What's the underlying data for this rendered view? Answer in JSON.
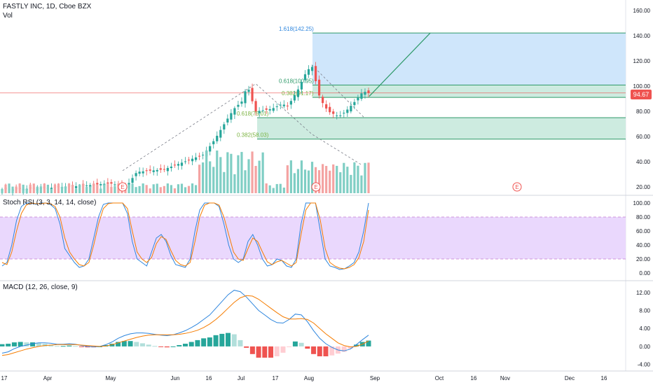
{
  "header": {
    "symbol_line": "FASTLY INC, 1D, Cboe BZX",
    "vol_label": "Vol"
  },
  "last_price_badge": "94.67",
  "colors": {
    "up": "#26a69a",
    "down": "#ef5350",
    "up_vol": "#7fcec4",
    "down_vol": "#f4a3a2",
    "fib_blue_zone": "#cfe6fb",
    "fib_green_zone": "#cdebe0",
    "stoch_band": "#ead8fd",
    "k_line": "#2e86de",
    "d_line": "#f57c00",
    "hline_green": "#2e9a69",
    "price_line": "#ef5350"
  },
  "chart_data": [
    {
      "type": "candlestick",
      "title": "FASTLY INC, 1D, Cboe BZX",
      "x_ticks": [
        "17",
        "Apr",
        "May",
        "Jun",
        "16",
        "Jul",
        "17",
        "Aug",
        "Sep",
        "Oct",
        "16",
        "Nov",
        "Dec",
        "16"
      ],
      "y_ticks": [
        "160.00",
        "140.00",
        "120.00",
        "100.00",
        "80.00",
        "60.00",
        "40.00",
        "20.00"
      ],
      "ylim": [
        14,
        164
      ],
      "last_price": 94.67,
      "earnings_markers": [
        "E",
        "E",
        "E"
      ],
      "fib_labels": [
        "1.618(142.25)",
        "0.618(100.95)",
        "0.382(91.17)",
        "0.618(75.01)",
        "0.382(58.03)"
      ],
      "fib_levels": [
        142.25,
        100.95,
        91.17,
        75.01,
        58.03
      ],
      "candles_approx": "daily OHLC from ~15 to ~118, peak early Aug, last close 94.67"
    },
    {
      "type": "line",
      "title": "Stoch RSI (3, 3, 14, 14, close)",
      "y_ticks": [
        "100.00",
        "80.00",
        "60.00",
        "40.00",
        "20.00",
        "0.00"
      ],
      "ylim": [
        -5,
        105
      ],
      "bands": [
        20,
        80
      ],
      "series": [
        {
          "name": "",
          "values": [
            10,
            15,
            40,
            75,
            95,
            100,
            100,
            98,
            100,
            100,
            98,
            92,
            70,
            35,
            25,
            15,
            8,
            10,
            20,
            50,
            80,
            98,
            100,
            100,
            100,
            100,
            85,
            45,
            20,
            15,
            10,
            30,
            50,
            55,
            45,
            25,
            12,
            10,
            8,
            20,
            60,
            90,
            100,
            100,
            100,
            95,
            70,
            40,
            20,
            15,
            20,
            45,
            55,
            40,
            20,
            10,
            12,
            20,
            18,
            10,
            8,
            20,
            70,
            100,
            100,
            100,
            60,
            20,
            10,
            8,
            5,
            6,
            10,
            15,
            30,
            60,
            100
          ]
        },
        {
          "name": "",
          "values": [
            15,
            12,
            30,
            60,
            85,
            97,
            100,
            99,
            99,
            100,
            99,
            95,
            80,
            50,
            30,
            20,
            12,
            10,
            15,
            40,
            70,
            92,
            99,
            100,
            100,
            100,
            92,
            60,
            30,
            20,
            15,
            22,
            42,
            52,
            48,
            32,
            18,
            12,
            10,
            15,
            45,
            80,
            97,
            100,
            100,
            97,
            80,
            55,
            30,
            20,
            18,
            35,
            50,
            45,
            30,
            16,
            12,
            16,
            18,
            14,
            10,
            15,
            55,
            90,
            100,
            100,
            75,
            35,
            15,
            10,
            7,
            6,
            8,
            12,
            22,
            45,
            90
          ]
        }
      ]
    },
    {
      "type": "line",
      "title": "MACD (12, 26, close, 9)",
      "y_ticks": [
        "12.00",
        "8.00",
        "4.00",
        "0.00",
        "-4.00"
      ],
      "ylim": [
        -5,
        14
      ],
      "series": [
        {
          "name": "",
          "values": [
            -1.5,
            -1.2,
            -0.5,
            0,
            0.3,
            0.6,
            0.8,
            0.8,
            0.7,
            0.5,
            0.5,
            0.6,
            0.5,
            0.2,
            0,
            -0.1,
            0,
            0.4,
            1,
            1.8,
            2.4,
            2.8,
            3.0,
            3.0,
            2.9,
            2.7,
            2.5,
            2.4,
            2.6,
            3.0,
            3.5,
            4.2,
            5.0,
            6.0,
            7.0,
            8.5,
            10.0,
            11.5,
            12.5,
            12.2,
            11.0,
            9.5,
            8.0,
            7.0,
            6.0,
            5.3,
            5.2,
            6.0,
            7.2,
            7.0,
            5.5,
            3.5,
            1.8,
            0.6,
            -0.2,
            -0.8,
            -1.0,
            -0.6,
            0.4,
            1.5,
            2.5
          ]
        },
        {
          "name": "",
          "values": [
            -2.0,
            -1.8,
            -1.4,
            -1.0,
            -0.6,
            -0.3,
            0,
            0.2,
            0.3,
            0.4,
            0.4,
            0.4,
            0.4,
            0.3,
            0.2,
            0.1,
            0,
            0.1,
            0.4,
            0.8,
            1.2,
            1.6,
            2.0,
            2.3,
            2.5,
            2.6,
            2.6,
            2.6,
            2.6,
            2.7,
            2.9,
            3.2,
            3.6,
            4.2,
            5.0,
            6.0,
            7.2,
            8.5,
            9.8,
            10.8,
            11.3,
            11.2,
            10.5,
            9.5,
            8.5,
            7.5,
            6.6,
            6.1,
            6.1,
            6.2,
            6.0,
            5.2,
            4.0,
            2.8,
            1.8,
            0.8,
            0.2,
            -0.1,
            0,
            0.5,
            1.2
          ]
        },
        {
          "name": "",
          "values": [
            0.5,
            0.6,
            0.9,
            1.0,
            0.9,
            0.9,
            0.8,
            0.6,
            0.4,
            0.1,
            0.1,
            0.2,
            0.1,
            -0.1,
            -0.2,
            -0.2,
            0,
            0.3,
            0.6,
            1.0,
            1.2,
            1.2,
            1.0,
            0.7,
            0.4,
            0.1,
            -0.1,
            -0.2,
            0,
            0.3,
            0.6,
            1.0,
            1.4,
            1.8,
            2.0,
            2.5,
            2.8,
            3.0,
            2.7,
            1.4,
            -0.3,
            -1.7,
            -2.5,
            -2.5,
            -2.5,
            -2.2,
            -1.4,
            -0.1,
            1.1,
            0.8,
            -0.5,
            -1.7,
            -2.2,
            -2.2,
            -2.0,
            -1.6,
            -1.2,
            -0.5,
            0.4,
            1.0,
            1.3
          ]
        }
      ]
    }
  ],
  "stoch_legend": "Stoch RSI (3, 3, 14, 14, close)",
  "macd_legend": "MACD (12, 26, close, 9)"
}
